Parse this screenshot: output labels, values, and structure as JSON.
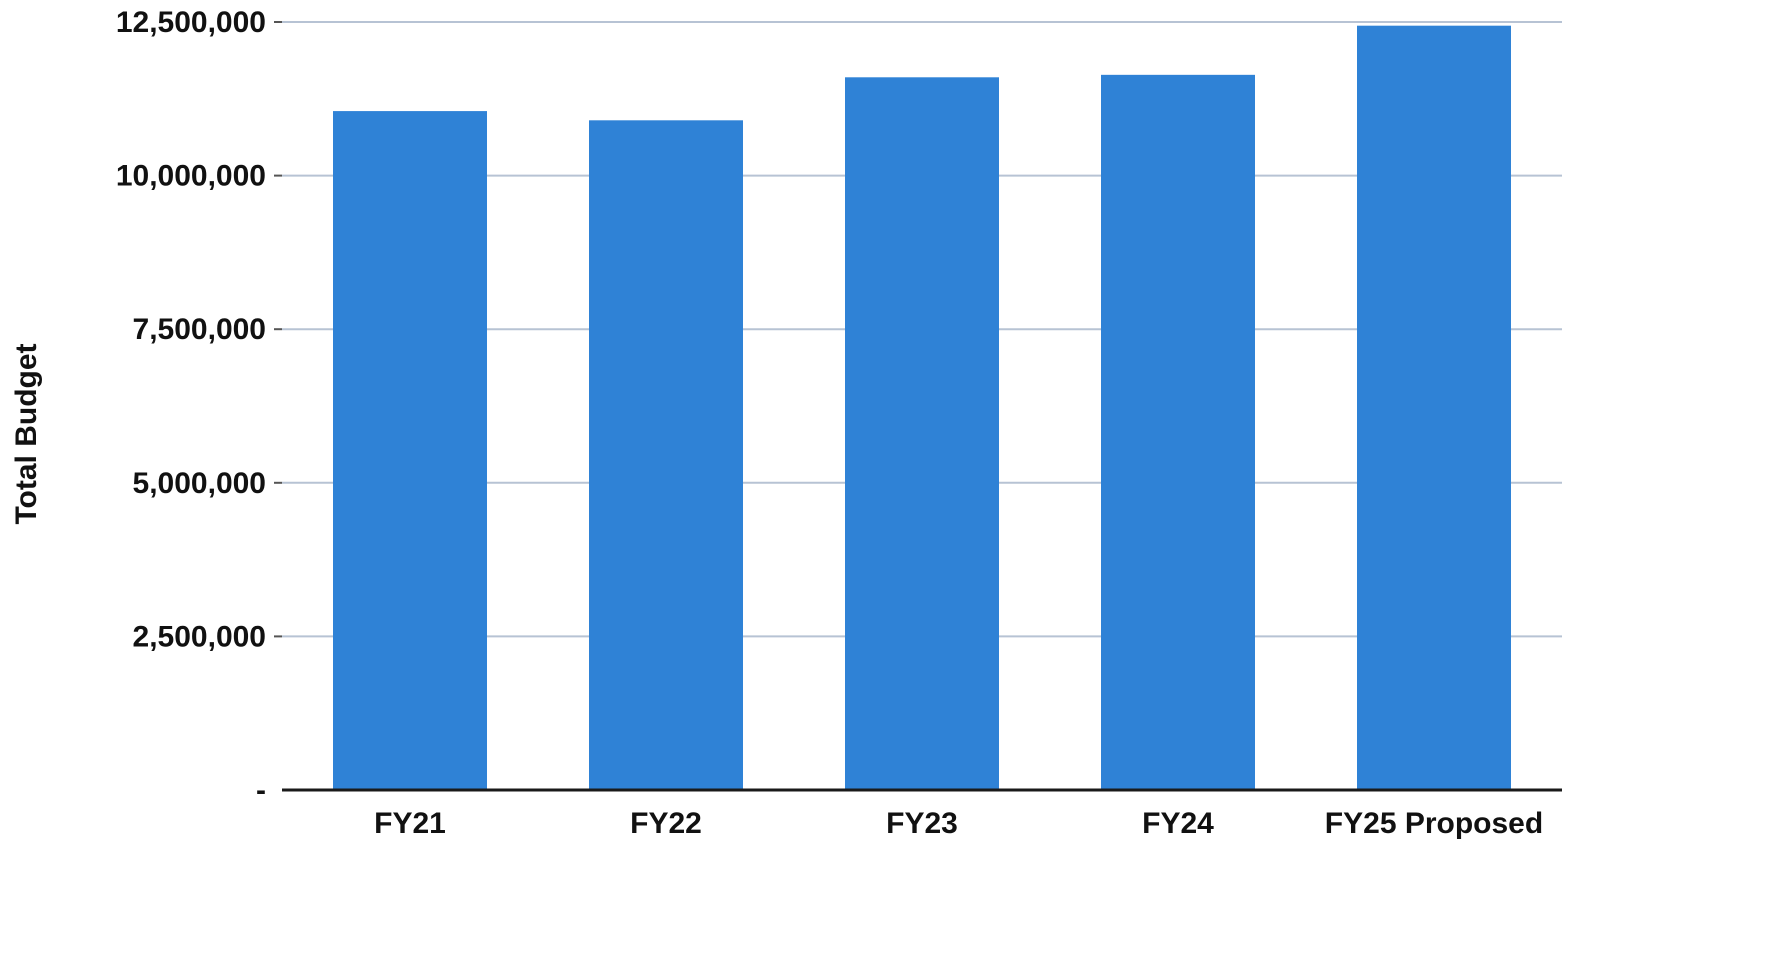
{
  "chart_data": {
    "type": "bar",
    "title": "",
    "xlabel": "",
    "ylabel": "Total Budget",
    "categories": [
      "FY21",
      "FY22",
      "FY23",
      "FY24",
      "FY25 Proposed"
    ],
    "values": [
      11050000,
      10900000,
      11600000,
      11640000,
      12440000
    ],
    "ylim": [
      0,
      12500000
    ],
    "yticks": [
      0,
      2500000,
      5000000,
      7500000,
      10000000,
      12500000
    ],
    "ytick_labels": [
      "-",
      "2,500,000",
      "5,000,000",
      "7,500,000",
      "10,000,000",
      "12,500,000"
    ],
    "grid": true,
    "legend": "none",
    "bar_color": "#2f82d6"
  }
}
